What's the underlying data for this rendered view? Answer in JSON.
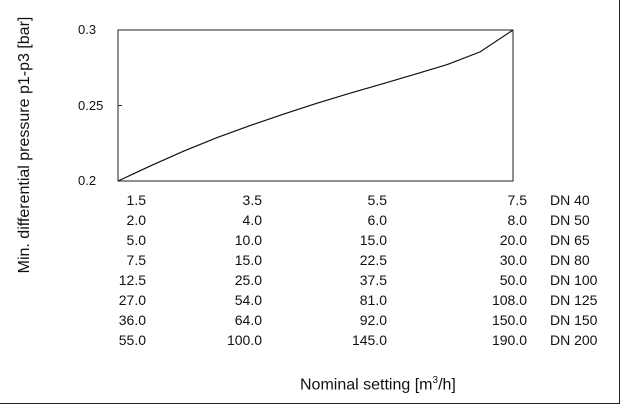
{
  "chart_data": {
    "type": "line",
    "ylabel": "Min. differential pressure p1-p3 [bar]",
    "xlabel_prefix": "Nominal setting [m",
    "xlabel_sup": "3",
    "xlabel_suffix": "/h]",
    "ylim": [
      0.2,
      0.3
    ],
    "yticks": [
      {
        "value": 0.3,
        "label": "0.3"
      },
      {
        "value": 0.25,
        "label": "0.25"
      },
      {
        "value": 0.2,
        "label": "0.2"
      }
    ],
    "grid": false,
    "x": [
      1.5,
      2.0,
      2.5,
      3.0,
      3.5,
      4.0,
      4.5,
      5.0,
      5.5,
      6.0,
      6.5,
      7.0,
      7.5
    ],
    "series": [
      {
        "values": [
          0.2,
          0.2101,
          0.2198,
          0.2287,
          0.2366,
          0.2441,
          0.2512,
          0.2578,
          0.2641,
          0.2706,
          0.2771,
          0.2855,
          0.3
        ]
      }
    ],
    "scale_columns": [
      [
        "1.5",
        "3.5",
        "5.5",
        "7.5"
      ],
      [
        "2.0",
        "4.0",
        "6.0",
        "8.0"
      ],
      [
        "5.0",
        "10.0",
        "15.0",
        "20.0"
      ],
      [
        "7.5",
        "15.0",
        "22.5",
        "30.0"
      ],
      [
        "12.5",
        "25.0",
        "37.5",
        "50.0"
      ],
      [
        "27.0",
        "54.0",
        "81.0",
        "108.0"
      ],
      [
        "36.0",
        "64.0",
        "92.0",
        "150.0"
      ],
      [
        "55.0",
        "100.0",
        "145.0",
        "190.0"
      ]
    ],
    "dn_labels": [
      "DN 40",
      "DN 50",
      "DN 65",
      "DN 80",
      "DN 100",
      "DN 125",
      "DN 150",
      "DN 200"
    ]
  }
}
